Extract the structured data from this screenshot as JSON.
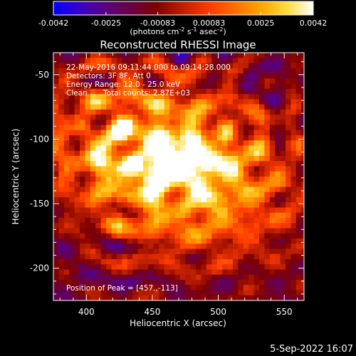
{
  "colorbar": {
    "ticks": [
      "-0.0042",
      "-0.0025",
      "-0.00083",
      "0.00083",
      "0.0025",
      "0.0042"
    ],
    "units": "(photons cm",
    "units_sup1": "-2",
    "units_mid1": " s",
    "units_sup2": "-1",
    "units_mid2": " asec",
    "units_sup3": "-2",
    "units_end": ")",
    "colormap": [
      "#0000ff",
      "#3a00c8",
      "#5a0080",
      "#6a0040",
      "#7f0000",
      "#c02000",
      "#ff3a00",
      "#ff7000",
      "#ffa500",
      "#ffdd40",
      "#ffffff"
    ]
  },
  "overlay": {
    "line1": "22-May-2016 09:11:44.000 to 09:14:28.000",
    "line2": "Detectors: 3F 8F, Att 0",
    "line3": "Energy Range: 12.0 - 25.0 keV",
    "line4_a": "Clean",
    "line4_b": "Total counts: 2.87E+03",
    "peak": "Position of Peak = [457.,-113]"
  },
  "footer": {
    "date": "5-Sep-2022 16:07"
  },
  "chart_data": {
    "type": "heatmap",
    "title": "Reconstructed RHESSI Image",
    "xlabel": "Heliocentric X (arcsec)",
    "ylabel": "Heliocentric Y (arcsec)",
    "xlim": [
      375,
      565
    ],
    "ylim": [
      -225,
      -33
    ],
    "xticks": [
      400,
      450,
      500,
      550
    ],
    "yticks": [
      -50,
      -100,
      -150,
      -200
    ],
    "color_range": [
      -0.0042,
      0.0042
    ],
    "peak": {
      "x": 457,
      "y": -113
    },
    "secondary_peaks": [
      {
        "x": 472,
        "y": -110
      },
      {
        "x": 493,
        "y": -116
      },
      {
        "x": 445,
        "y": -128
      },
      {
        "x": 413,
        "y": -117
      }
    ],
    "ring_sources": [
      {
        "x": 533,
        "y": -55
      },
      {
        "x": 397,
        "y": -90
      },
      {
        "x": 432,
        "y": -115
      },
      {
        "x": 505,
        "y": -92
      },
      {
        "x": 430,
        "y": -145
      },
      {
        "x": 470,
        "y": -150
      }
    ],
    "grid": false,
    "pixel_size_arcsec": 4
  }
}
